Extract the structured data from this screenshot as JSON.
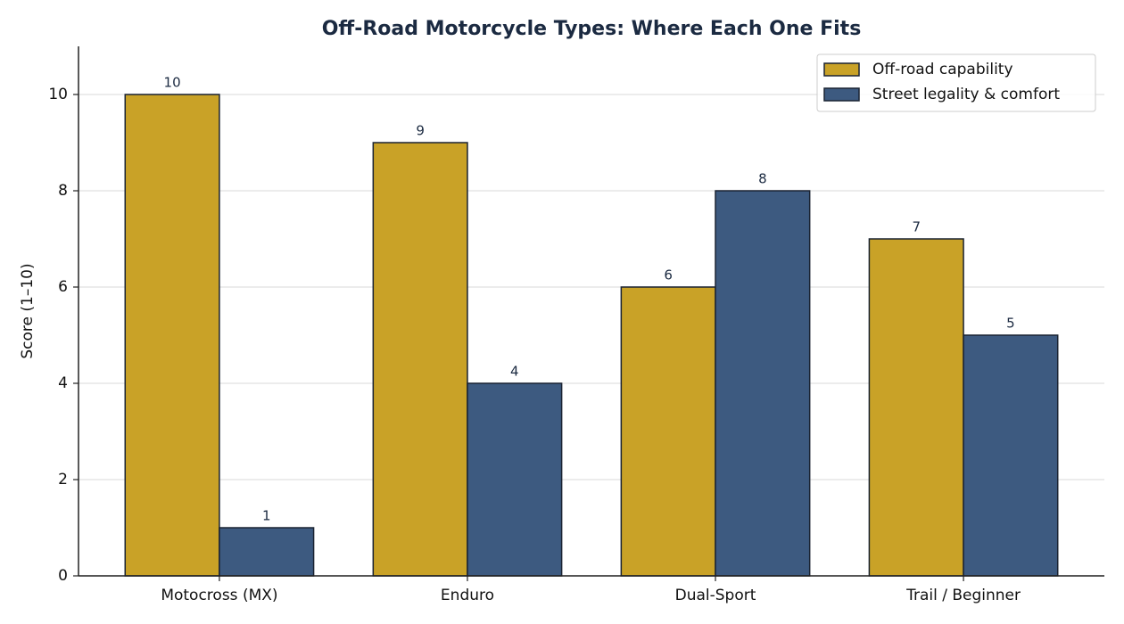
{
  "chart_data": {
    "type": "bar",
    "title": "Off-Road Motorcycle Types: Where Each One Fits",
    "y_label": "Score (1–10)",
    "categories": [
      "Motocross (MX)",
      "Enduro",
      "Dual-Sport",
      "Trail / Beginner"
    ],
    "series": [
      {
        "name": "Off-road capability",
        "color": "#c9a227",
        "values": [
          10,
          9,
          6,
          7
        ]
      },
      {
        "name": "Street legality & comfort",
        "color": "#3d5a80",
        "values": [
          1,
          4,
          8,
          5
        ]
      }
    ],
    "ylim": [
      0,
      11
    ],
    "yticks": [
      0,
      2,
      4,
      6,
      8,
      10
    ],
    "grid": true,
    "legend": "upper right"
  }
}
